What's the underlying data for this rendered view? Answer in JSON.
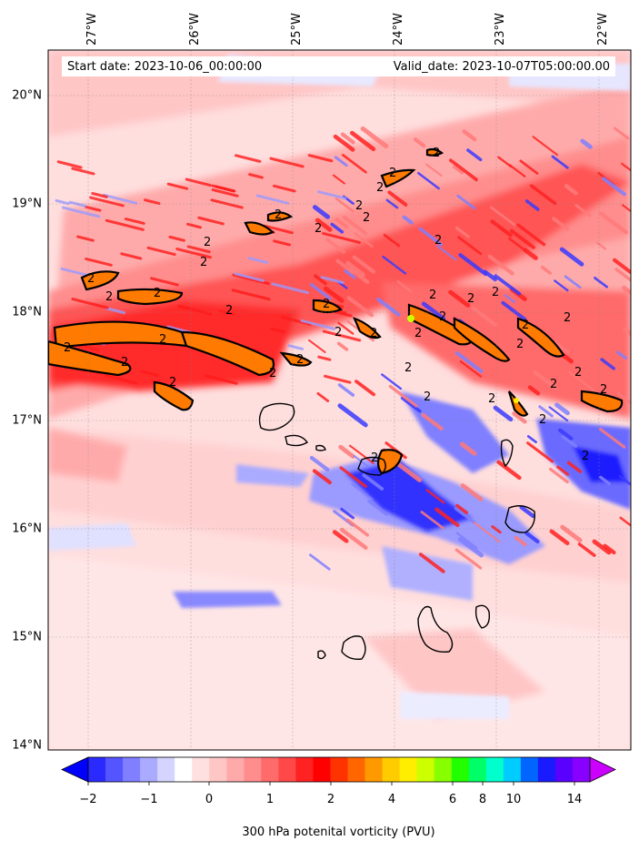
{
  "map": {
    "lat_labels": [
      "20°N",
      "19°N",
      "18°N",
      "17°N",
      "16°N",
      "15°N",
      "14°N"
    ],
    "lon_labels": [
      "27°W",
      "26°W",
      "25°W",
      "24°W",
      "23°W",
      "22°W"
    ],
    "extent": {
      "lon_min": -27.4,
      "lon_max": -21.7,
      "lat_min": 13.95,
      "lat_max": 20.4
    },
    "contour_label": "2",
    "start_date": "Start date: 2023-10-06_00:00:00",
    "valid_date": "Valid_date: 2023-10-07T05:00:00.00"
  },
  "colorbar": {
    "title": "300 hPa potenital vorticity (PVU)",
    "tick_labels": [
      "−2",
      "−1",
      "0",
      "1",
      "2",
      "4",
      "6",
      "8",
      "10",
      "14"
    ],
    "colors": [
      "#0000ff",
      "#2a2aff",
      "#5555ff",
      "#7f7fff",
      "#aaaaff",
      "#d4d4ff",
      "#ffffff",
      "#ffe0e0",
      "#ffc6c6",
      "#ffaaaa",
      "#ff8d8d",
      "#ff6b6b",
      "#ff4848",
      "#ff2222",
      "#ff0000",
      "#ff3300",
      "#ff6600",
      "#ff9900",
      "#ffcc00",
      "#ffee00",
      "#ccff00",
      "#88ff00",
      "#22ff00",
      "#00ff66",
      "#00ffcc",
      "#00ccff",
      "#0066ff",
      "#1a1aff",
      "#5a00ff",
      "#8800ff",
      "#cc00ff"
    ]
  }
}
